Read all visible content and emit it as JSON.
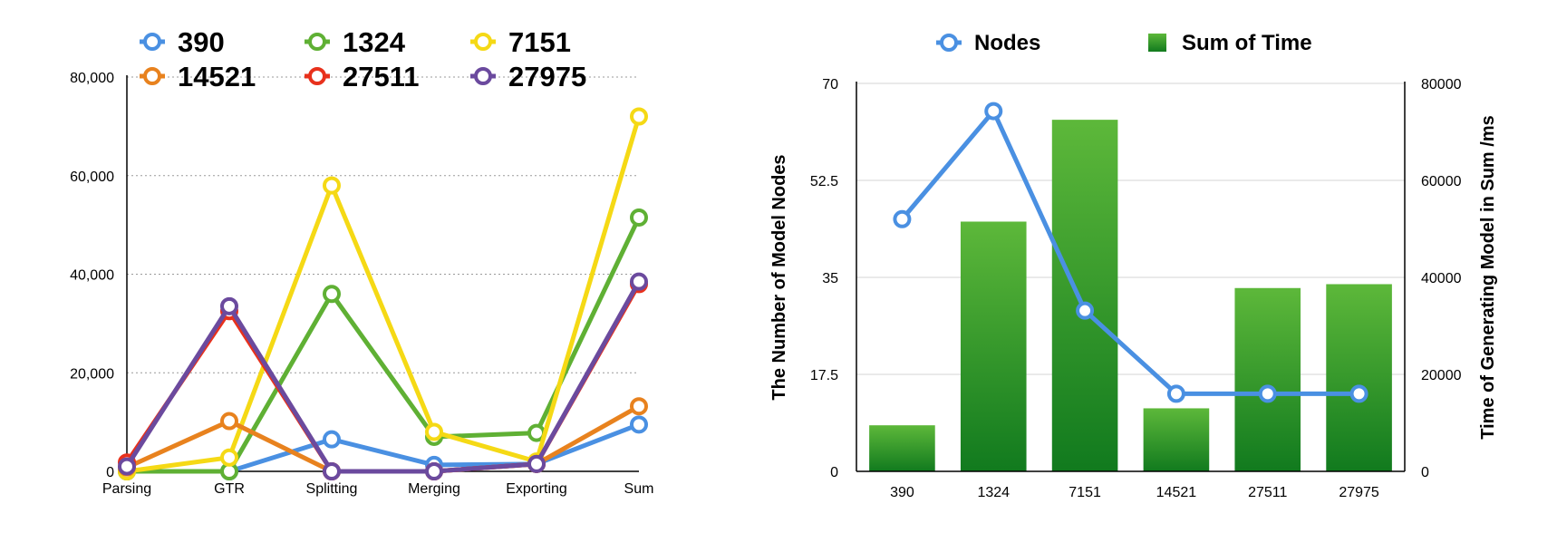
{
  "chart_data": [
    {
      "type": "line",
      "categories": [
        "Parsing",
        "GTR",
        "Splitting",
        "Merging",
        "Exporting",
        "Sum"
      ],
      "ylim": [
        0,
        80000
      ],
      "yticks": [
        "0",
        "20,000",
        "40,000",
        "60,000",
        "80,000"
      ],
      "ytick_values": [
        0,
        20000,
        40000,
        60000,
        80000
      ],
      "grid": true,
      "legend_position": "top",
      "series": [
        {
          "name": "390",
          "color": "#4A90E2",
          "values": [
            0,
            0,
            6500,
            1300,
            1500,
            9500
          ]
        },
        {
          "name": "1324",
          "color": "#5FB034",
          "values": [
            0,
            0,
            36000,
            7000,
            7800,
            51500
          ]
        },
        {
          "name": "7151",
          "color": "#F5D915",
          "values": [
            0,
            2800,
            58000,
            8000,
            2000,
            72000
          ]
        },
        {
          "name": "14521",
          "color": "#E8821E",
          "values": [
            800,
            10200,
            0,
            0,
            1500,
            13200
          ]
        },
        {
          "name": "27511",
          "color": "#E8311C",
          "values": [
            1800,
            32500,
            0,
            0,
            1500,
            38000
          ]
        },
        {
          "name": "27975",
          "color": "#6B4A9E",
          "values": [
            1000,
            33500,
            0,
            0,
            1500,
            38500
          ]
        }
      ]
    },
    {
      "type": "bar",
      "categories": [
        "390",
        "1324",
        "7151",
        "14521",
        "27511",
        "27975"
      ],
      "legend_position": "top",
      "grid": true,
      "ylabel_left": "The Number of Model Nodes",
      "ylabel_right": "Time of Generating Model in Sum /ms",
      "ylim_left": [
        0,
        70
      ],
      "yticks_left": [
        "0",
        "17.5",
        "35",
        "52.5",
        "70"
      ],
      "ylim_right": [
        0,
        80000
      ],
      "yticks_right": [
        "0",
        "20000",
        "40000",
        "60000",
        "80000"
      ],
      "series": [
        {
          "name": "Nodes",
          "type": "line",
          "axis": "left",
          "color": "#4A90E2",
          "values": [
            45.5,
            65,
            29,
            14,
            14,
            14
          ]
        },
        {
          "name": "Sum of Time",
          "type": "bar",
          "axis": "right",
          "color": "#2E9A2E",
          "values": [
            9500,
            51500,
            72500,
            13000,
            37800,
            38600
          ]
        }
      ]
    }
  ]
}
